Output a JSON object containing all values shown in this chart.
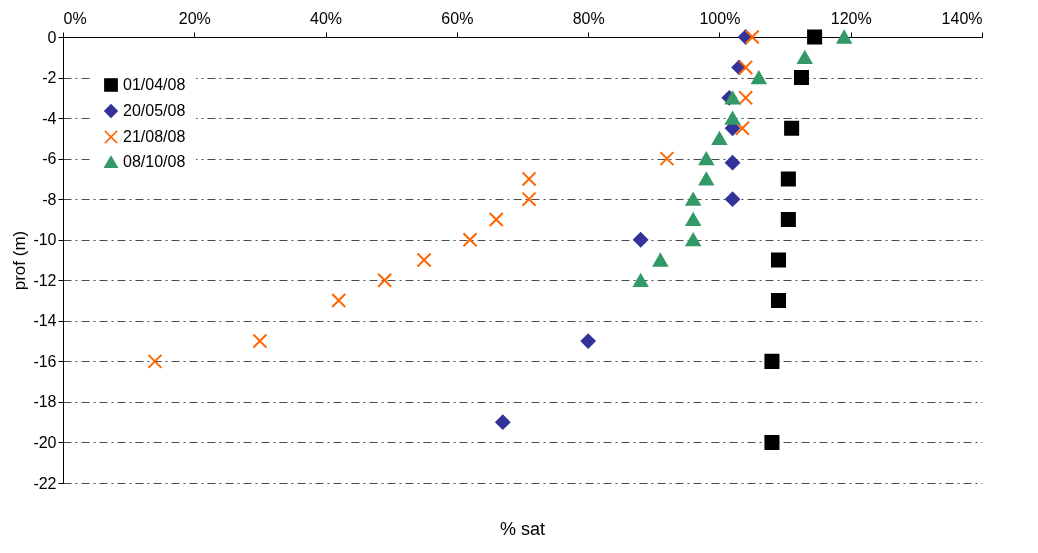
{
  "chart_data": {
    "type": "scatter",
    "xlabel": "% sat",
    "ylabel": "prof (m)",
    "xlim": [
      0,
      140
    ],
    "xticks": [
      {
        "value": 0,
        "label": "0%"
      },
      {
        "value": 20,
        "label": "20%"
      },
      {
        "value": 40,
        "label": "40%"
      },
      {
        "value": 60,
        "label": "60%"
      },
      {
        "value": 80,
        "label": "80%"
      },
      {
        "value": 100,
        "label": "100%"
      },
      {
        "value": 120,
        "label": "120%"
      },
      {
        "value": 140,
        "label": "140%"
      }
    ],
    "ylim": [
      -22,
      0
    ],
    "yticks": [
      0,
      -2,
      -4,
      -6,
      -8,
      -10,
      -12,
      -14,
      -16,
      -18,
      -20,
      -22
    ],
    "grid": "y",
    "legend": "top left",
    "series": [
      {
        "name": "01/04/08",
        "color": "#000000",
        "marker": "square",
        "x": [
          114.5,
          112.5,
          111,
          110.5,
          110.5,
          109,
          109,
          108,
          108
        ],
        "values": [
          0,
          -2,
          -4.5,
          -7,
          -9,
          -11,
          -13,
          -16,
          -20
        ]
      },
      {
        "name": "20/05/08",
        "color": "#333399",
        "marker": "diamond",
        "x": [
          104,
          103,
          101.5,
          102,
          102,
          102,
          88,
          80,
          67
        ],
        "values": [
          0,
          -1.5,
          -3,
          -4.5,
          -6.2,
          -8,
          -10,
          -15,
          -19
        ]
      },
      {
        "name": "21/08/08",
        "color": "#ff6600",
        "marker": "cross",
        "x": [
          105,
          104,
          104,
          103.5,
          92,
          71,
          71,
          66,
          62,
          55,
          49,
          42,
          30,
          14
        ],
        "values": [
          0,
          -1.5,
          -3,
          -4.5,
          -6,
          -7,
          -8,
          -9,
          -10,
          -11,
          -12,
          -13,
          -15,
          -16
        ]
      },
      {
        "name": "08/10/08",
        "color": "#339966",
        "marker": "triangle",
        "x": [
          119,
          113,
          106,
          102,
          102,
          100,
          98,
          98,
          96,
          96,
          96,
          91,
          88
        ],
        "values": [
          0,
          -1,
          -2,
          -3,
          -4,
          -5,
          -6,
          -7,
          -8,
          -9,
          -10,
          -11,
          -12
        ]
      }
    ]
  }
}
